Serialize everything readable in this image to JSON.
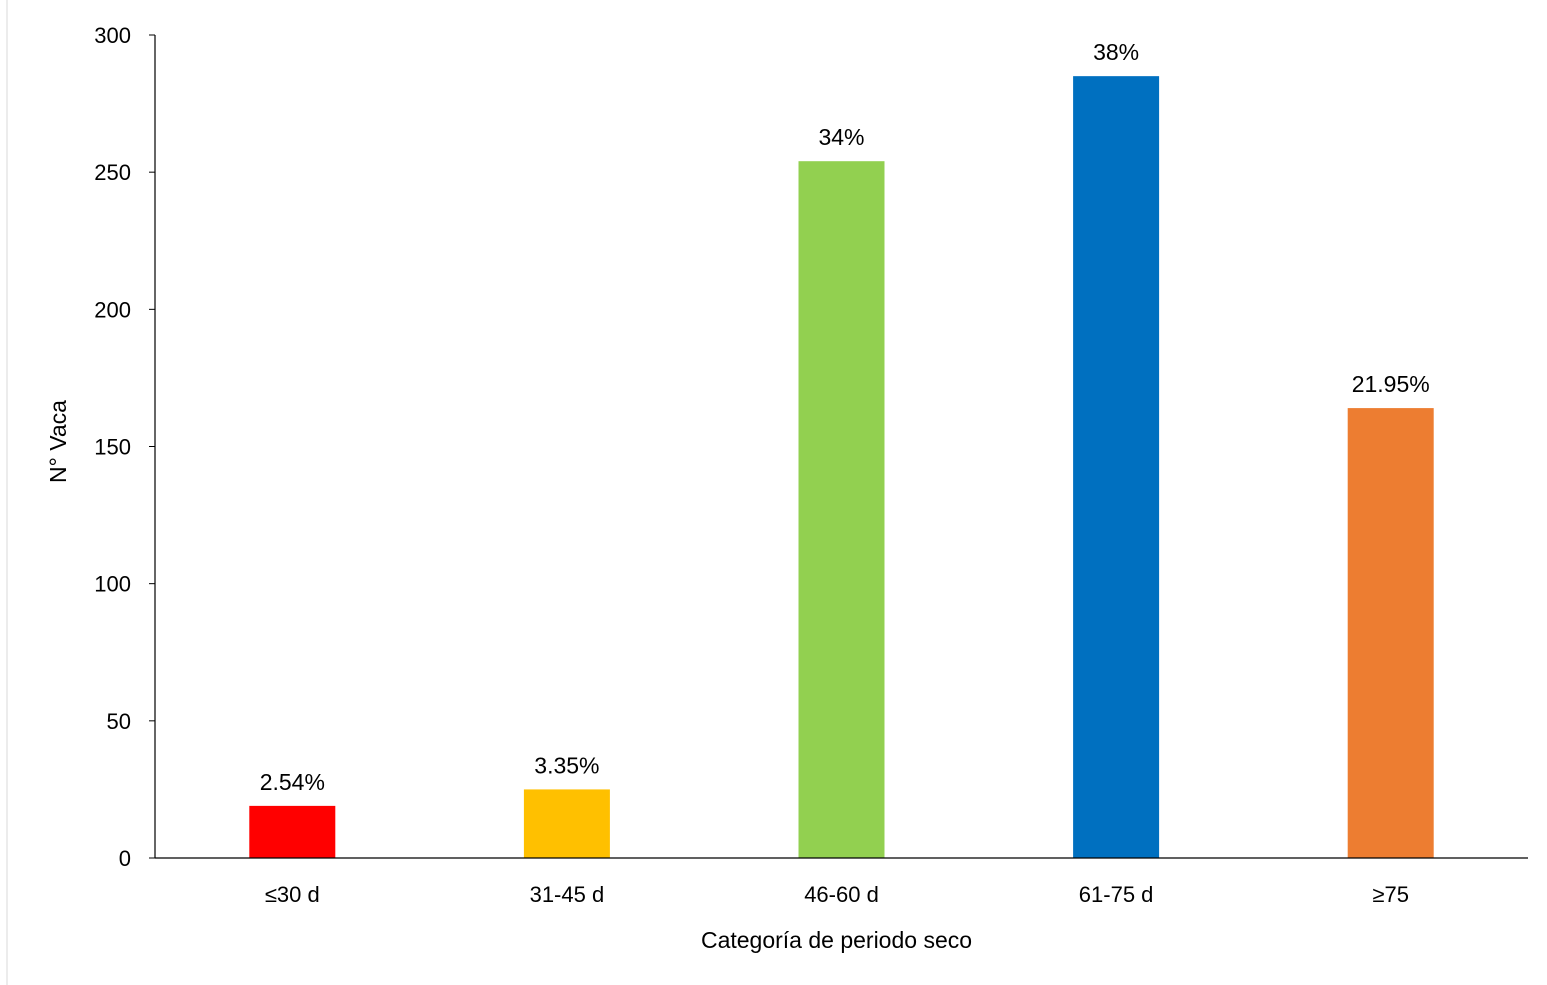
{
  "chart_data": {
    "type": "bar",
    "title": "",
    "xlabel": "Categoría de periodo seco",
    "ylabel": "N° Vaca",
    "categories": [
      "≤30 d",
      "31-45 d",
      "46-60 d",
      "61-75 d",
      "≥75"
    ],
    "values": [
      19,
      25,
      254,
      285,
      164
    ],
    "data_labels": [
      "2.54%",
      "3.35%",
      "34%",
      "38%",
      "21.95%"
    ],
    "colors": [
      "#FF0000",
      "#FFC000",
      "#92D050",
      "#0070C0",
      "#ED7D31"
    ],
    "ylim": [
      0,
      300
    ],
    "yticks": [
      0,
      50,
      100,
      150,
      200,
      250,
      300
    ],
    "grid": false,
    "legend": "none"
  }
}
